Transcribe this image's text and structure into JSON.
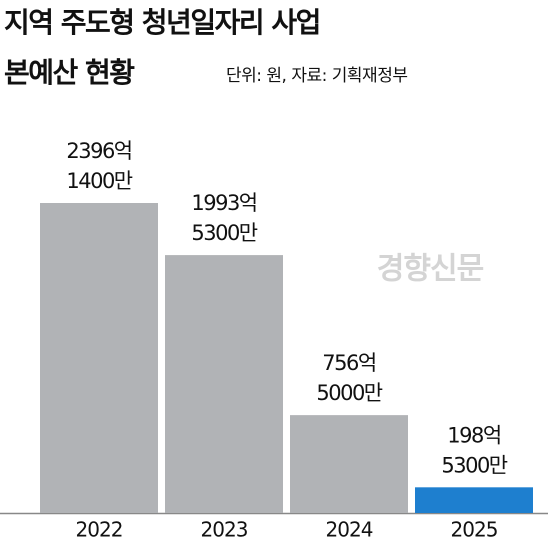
{
  "chart_data": {
    "type": "bar",
    "title": [
      "지역 주도형 청년일자리 사업",
      "본예산 현황"
    ],
    "subtitle": "단위: 원, 자료: 기획재정부",
    "watermark": "경향신문",
    "categories": [
      "2022",
      "2023",
      "2024",
      "2025"
    ],
    "values": [
      239614000000,
      199353000000,
      75650000000,
      19853000000
    ],
    "value_labels": [
      [
        "2396억",
        "1400만"
      ],
      [
        "1993억",
        "5300만"
      ],
      [
        "756억",
        "5000만"
      ],
      [
        "198억",
        "5300만"
      ]
    ],
    "colors": [
      "#b1b3b6",
      "#b1b3b6",
      "#b1b3b6",
      "#1e7fcf"
    ]
  }
}
